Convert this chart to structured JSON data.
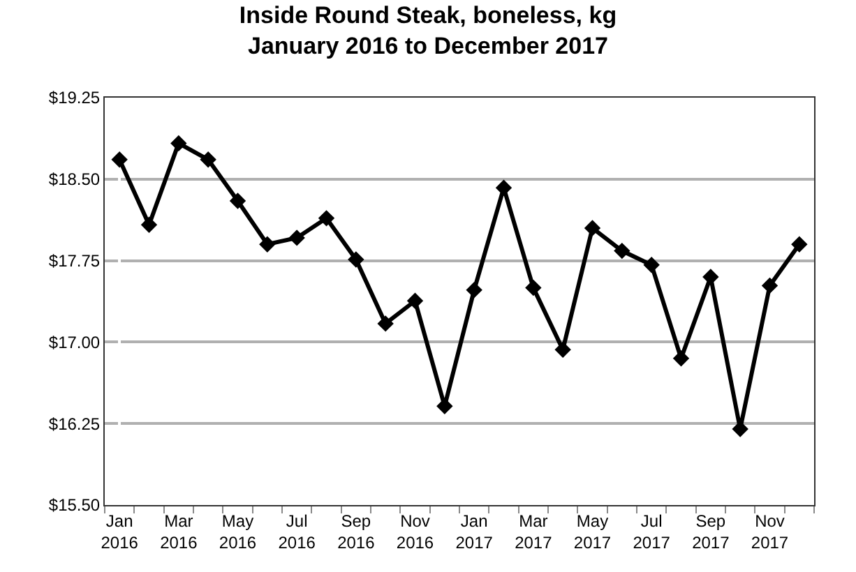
{
  "chart_data": {
    "type": "line",
    "title": "Inside Round Steak, boneless, kg\nJanuary 2016 to December 2017",
    "categories": [
      "Jan\n2016",
      null,
      "Mar\n2016",
      null,
      "May\n2016",
      null,
      "Jul\n2016",
      null,
      "Sep\n2016",
      null,
      "Nov\n2016",
      null,
      "Jan\n2017",
      null,
      "Mar\n2017",
      null,
      "May\n2017",
      null,
      "Jul\n2017",
      null,
      "Sep\n2017",
      null,
      "Nov\n2017",
      null
    ],
    "series": [
      {
        "color": "#000000",
        "values": [
          18.68,
          18.08,
          18.83,
          18.68,
          18.3,
          17.9,
          17.96,
          18.14,
          17.76,
          17.17,
          17.38,
          16.41,
          17.48,
          18.42,
          17.5,
          16.93,
          18.05,
          17.84,
          17.71,
          16.85,
          17.6,
          16.2,
          17.52,
          17.9
        ]
      }
    ],
    "ylim": [
      15.5,
      19.25
    ],
    "yticks": [
      {
        "value": 15.5,
        "label": "$15.50"
      },
      {
        "value": 16.25,
        "label": "$16.25"
      },
      {
        "value": 17.0,
        "label": "$17.00"
      },
      {
        "value": 17.75,
        "label": "$17.75"
      },
      {
        "value": 18.5,
        "label": "$18.50"
      },
      {
        "value": 19.25,
        "label": "$19.25"
      }
    ],
    "grid": "y",
    "marker": "diamond",
    "line_style": "solid"
  }
}
